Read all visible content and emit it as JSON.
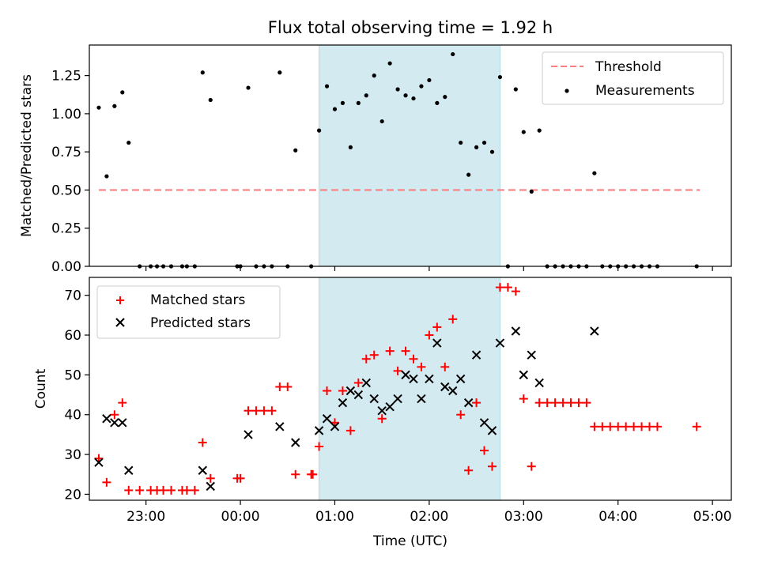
{
  "title": "Flux total observing time = 1.92 h",
  "xlabel": "Time (UTC)",
  "colors": {
    "threshold": "#ff7f7f",
    "measurements": "#000000",
    "matched": "#ff0000",
    "predicted": "#000000",
    "window": "#d4eaf1"
  },
  "chart_data": [
    {
      "type": "scatter",
      "title": "Flux total observing time = 1.92 h",
      "ylabel": "Matched/Predicted stars",
      "xlim": [
        "22:24",
        "05:12"
      ],
      "ylim": [
        0,
        1.45
      ],
      "yticks": [
        "0.00",
        "0.25",
        "0.50",
        "0.75",
        "1.00",
        "1.25"
      ],
      "xticks": [
        "23:00",
        "00:00",
        "01:00",
        "02:00",
        "03:00",
        "04:00",
        "05:00"
      ],
      "highlight_window": [
        "00:50",
        "02:45"
      ],
      "legend": {
        "placement": "top-right",
        "entries": [
          "Threshold",
          "Measurements"
        ]
      },
      "series": [
        {
          "name": "Threshold",
          "kind": "line",
          "style": "dashed",
          "x": [
            "22:30",
            "04:52"
          ],
          "y": [
            0.5,
            0.5
          ]
        },
        {
          "name": "Measurements",
          "kind": "points",
          "points": [
            [
              "22:30",
              1.04
            ],
            [
              "22:35",
              0.59
            ],
            [
              "22:40",
              1.05
            ],
            [
              "22:45",
              1.14
            ],
            [
              "22:49",
              0.81
            ],
            [
              "22:56",
              0
            ],
            [
              "23:03",
              0
            ],
            [
              "23:07",
              0
            ],
            [
              "23:11",
              0
            ],
            [
              "23:16",
              0
            ],
            [
              "23:23",
              0
            ],
            [
              "23:26",
              0
            ],
            [
              "23:31",
              0
            ],
            [
              "23:36",
              1.27
            ],
            [
              "23:41",
              1.09
            ],
            [
              "23:58",
              0
            ],
            [
              "24:00",
              0
            ],
            [
              "24:05",
              1.17
            ],
            [
              "24:10",
              0
            ],
            [
              "24:15",
              0
            ],
            [
              "24:20",
              0
            ],
            [
              "24:25",
              1.27
            ],
            [
              "24:30",
              0
            ],
            [
              "24:35",
              0.76
            ],
            [
              "24:45",
              0
            ],
            [
              "24:50",
              0.89
            ],
            [
              "24:55",
              1.18
            ],
            [
              "25:00",
              1.03
            ],
            [
              "25:05",
              1.07
            ],
            [
              "25:10",
              0.78
            ],
            [
              "25:15",
              1.07
            ],
            [
              "25:20",
              1.12
            ],
            [
              "25:25",
              1.25
            ],
            [
              "25:30",
              0.95
            ],
            [
              "25:35",
              1.33
            ],
            [
              "25:40",
              1.16
            ],
            [
              "25:45",
              1.12
            ],
            [
              "25:50",
              1.1
            ],
            [
              "25:55",
              1.18
            ],
            [
              "26:00",
              1.22
            ],
            [
              "26:05",
              1.07
            ],
            [
              "26:10",
              1.11
            ],
            [
              "26:15",
              1.39
            ],
            [
              "26:20",
              0.81
            ],
            [
              "26:25",
              0.6
            ],
            [
              "26:30",
              0.78
            ],
            [
              "26:35",
              0.81
            ],
            [
              "26:40",
              0.75
            ],
            [
              "26:45",
              1.24
            ],
            [
              "26:50",
              0
            ],
            [
              "26:55",
              1.16
            ],
            [
              "27:00",
              0.88
            ],
            [
              "27:05",
              0.49
            ],
            [
              "27:10",
              0.89
            ],
            [
              "27:15",
              0
            ],
            [
              "27:20",
              0
            ],
            [
              "27:25",
              0
            ],
            [
              "27:30",
              0
            ],
            [
              "27:35",
              0
            ],
            [
              "27:40",
              0
            ],
            [
              "27:45",
              0.61
            ],
            [
              "27:50",
              0
            ],
            [
              "27:55",
              0
            ],
            [
              "28:00",
              0
            ],
            [
              "28:05",
              0
            ],
            [
              "28:10",
              0
            ],
            [
              "28:15",
              0
            ],
            [
              "28:20",
              0
            ],
            [
              "28:25",
              0
            ],
            [
              "28:50",
              0
            ]
          ]
        }
      ]
    },
    {
      "type": "scatter",
      "ylabel": "Count",
      "xlim": [
        "22:24",
        "05:12"
      ],
      "ylim": [
        18.5,
        74.5
      ],
      "yticks": [
        "20",
        "30",
        "40",
        "50",
        "60",
        "70"
      ],
      "xticks": [
        "23:00",
        "00:00",
        "01:00",
        "02:00",
        "03:00",
        "04:00",
        "05:00"
      ],
      "highlight_window": [
        "00:50",
        "02:45"
      ],
      "legend": {
        "placement": "top-left",
        "entries": [
          "Matched stars",
          "Predicted stars"
        ]
      },
      "series": [
        {
          "name": "Matched stars",
          "marker": "+",
          "points": [
            [
              "22:30",
              29
            ],
            [
              "22:35",
              23
            ],
            [
              "22:40",
              40
            ],
            [
              "22:45",
              43
            ],
            [
              "22:49",
              21
            ],
            [
              "22:56",
              21
            ],
            [
              "23:03",
              21
            ],
            [
              "23:07",
              21
            ],
            [
              "23:11",
              21
            ],
            [
              "23:16",
              21
            ],
            [
              "23:23",
              21
            ],
            [
              "23:26",
              21
            ],
            [
              "23:31",
              21
            ],
            [
              "23:36",
              33
            ],
            [
              "23:41",
              24
            ],
            [
              "23:58",
              24
            ],
            [
              "24:00",
              24
            ],
            [
              "24:05",
              41
            ],
            [
              "24:10",
              41
            ],
            [
              "24:15",
              41
            ],
            [
              "24:20",
              41
            ],
            [
              "24:25",
              47
            ],
            [
              "24:30",
              47
            ],
            [
              "24:35",
              25
            ],
            [
              "24:45",
              25
            ],
            [
              "24:46",
              25
            ],
            [
              "24:50",
              32
            ],
            [
              "24:55",
              46
            ],
            [
              "25:00",
              38
            ],
            [
              "25:05",
              46
            ],
            [
              "25:10",
              36
            ],
            [
              "25:15",
              48
            ],
            [
              "25:20",
              54
            ],
            [
              "25:25",
              55
            ],
            [
              "25:30",
              39
            ],
            [
              "25:35",
              56
            ],
            [
              "25:40",
              51
            ],
            [
              "25:45",
              56
            ],
            [
              "25:50",
              54
            ],
            [
              "25:55",
              52
            ],
            [
              "26:00",
              60
            ],
            [
              "26:05",
              62
            ],
            [
              "26:10",
              52
            ],
            [
              "26:15",
              64
            ],
            [
              "26:20",
              40
            ],
            [
              "26:25",
              26
            ],
            [
              "26:30",
              43
            ],
            [
              "26:35",
              31
            ],
            [
              "26:40",
              27
            ],
            [
              "26:45",
              72
            ],
            [
              "26:50",
              72
            ],
            [
              "26:55",
              71
            ],
            [
              "27:00",
              44
            ],
            [
              "27:05",
              27
            ],
            [
              "27:10",
              43
            ],
            [
              "27:15",
              43
            ],
            [
              "27:20",
              43
            ],
            [
              "27:25",
              43
            ],
            [
              "27:30",
              43
            ],
            [
              "27:35",
              43
            ],
            [
              "27:40",
              43
            ],
            [
              "27:45",
              37
            ],
            [
              "27:50",
              37
            ],
            [
              "27:55",
              37
            ],
            [
              "28:00",
              37
            ],
            [
              "28:05",
              37
            ],
            [
              "28:10",
              37
            ],
            [
              "28:15",
              37
            ],
            [
              "28:20",
              37
            ],
            [
              "28:25",
              37
            ],
            [
              "28:50",
              37
            ]
          ]
        },
        {
          "name": "Predicted stars",
          "marker": "x",
          "points": [
            [
              "22:30",
              28
            ],
            [
              "22:35",
              39
            ],
            [
              "22:40",
              38
            ],
            [
              "22:45",
              38
            ],
            [
              "22:49",
              26
            ],
            [
              "23:36",
              26
            ],
            [
              "23:41",
              22
            ],
            [
              "24:05",
              35
            ],
            [
              "24:25",
              37
            ],
            [
              "24:35",
              33
            ],
            [
              "24:50",
              36
            ],
            [
              "24:55",
              39
            ],
            [
              "25:00",
              37
            ],
            [
              "25:05",
              43
            ],
            [
              "25:10",
              46
            ],
            [
              "25:15",
              45
            ],
            [
              "25:20",
              48
            ],
            [
              "25:25",
              44
            ],
            [
              "25:30",
              41
            ],
            [
              "25:35",
              42
            ],
            [
              "25:40",
              44
            ],
            [
              "25:45",
              50
            ],
            [
              "25:50",
              49
            ],
            [
              "25:55",
              44
            ],
            [
              "26:00",
              49
            ],
            [
              "26:05",
              58
            ],
            [
              "26:10",
              47
            ],
            [
              "26:15",
              46
            ],
            [
              "26:20",
              49
            ],
            [
              "26:25",
              43
            ],
            [
              "26:30",
              55
            ],
            [
              "26:35",
              38
            ],
            [
              "26:40",
              36
            ],
            [
              "26:45",
              58
            ],
            [
              "26:55",
              61
            ],
            [
              "27:00",
              50
            ],
            [
              "27:05",
              55
            ],
            [
              "27:10",
              48
            ],
            [
              "27:45",
              61
            ]
          ]
        }
      ]
    }
  ]
}
